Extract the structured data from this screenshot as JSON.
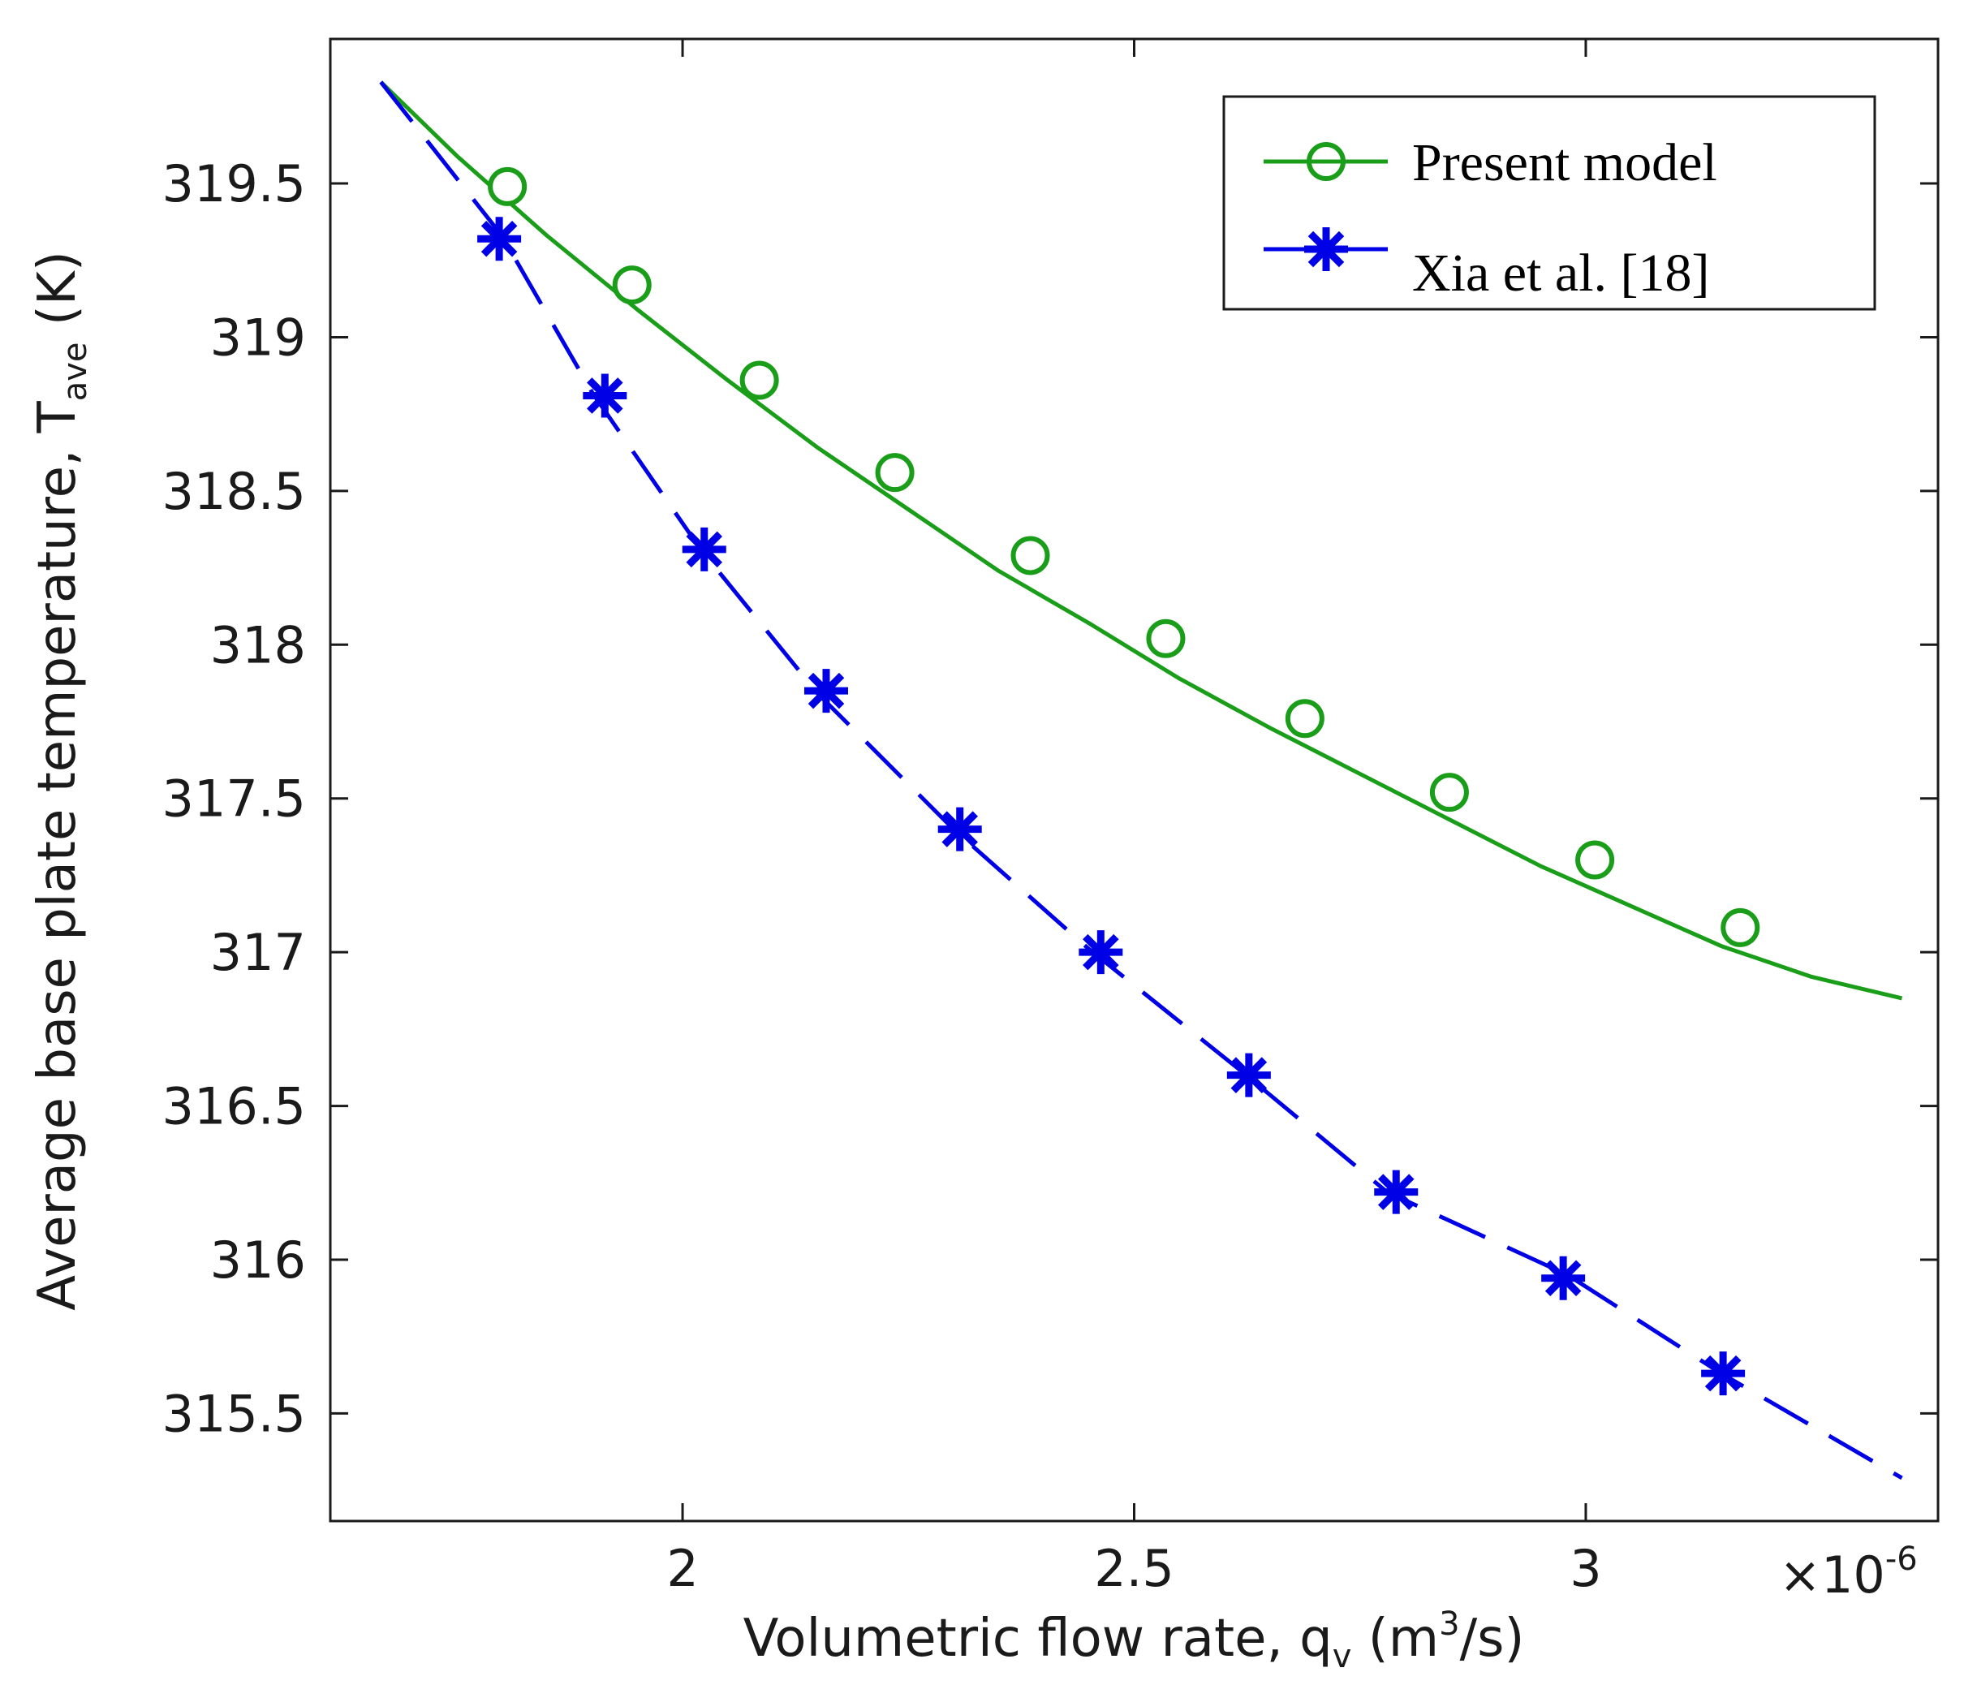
{
  "chart_data": {
    "type": "line",
    "title": "",
    "xlabel": {
      "prefix": "Volumetric flow rate, q",
      "sub": "v",
      "middle": " (m",
      "sup": "3",
      "suffix": "/s)"
    },
    "ylabel": {
      "prefix": "Average base plate temperature, T",
      "sub": "ave",
      "suffix": " (K)"
    },
    "x_multiplier_label": "×10",
    "x_multiplier_exp": "-6",
    "xlim": [
      1.61,
      3.39
    ],
    "ylim": [
      315.15,
      319.97
    ],
    "xticks": [
      2,
      2.5,
      3
    ],
    "xtick_labels": [
      "2",
      "2.5",
      "3"
    ],
    "yticks": [
      315.5,
      316,
      316.5,
      317,
      317.5,
      318,
      318.5,
      319,
      319.5
    ],
    "ytick_labels": [
      "315.5",
      "316",
      "316.5",
      "317",
      "317.5",
      "318",
      "318.5",
      "319",
      "319.5"
    ],
    "grid": false,
    "legend_position": "top-right",
    "series": [
      {
        "name": "Present model",
        "color": "#1a9e1a",
        "line_style": "solid",
        "marker": "circle",
        "line": {
          "x": [
            1.666,
            1.75,
            1.85,
            1.95,
            2.05,
            2.15,
            2.25,
            2.35,
            2.45,
            2.55,
            2.65,
            2.75,
            2.85,
            2.95,
            3.05,
            3.15,
            3.25,
            3.35
          ],
          "y": [
            319.83,
            319.59,
            319.33,
            319.09,
            318.86,
            318.64,
            318.44,
            318.24,
            318.07,
            317.89,
            317.73,
            317.58,
            317.43,
            317.28,
            317.15,
            317.02,
            316.92,
            316.85
          ]
        },
        "points": {
          "x": [
            1.806,
            1.944,
            2.085,
            2.235,
            2.385,
            2.535,
            2.689,
            2.849,
            3.01,
            3.171
          ],
          "y": [
            319.49,
            319.17,
            318.86,
            318.56,
            318.29,
            318.02,
            317.76,
            317.52,
            317.3,
            317.08
          ]
        }
      },
      {
        "name": "Xia et al. [18]",
        "color": "#0000e6",
        "line_style": "dashed",
        "marker": "asterisk",
        "line": {
          "x": [
            1.666,
            1.8,
            1.9,
            2.02,
            2.15,
            2.3,
            2.45,
            2.62,
            2.78,
            2.98,
            3.15,
            3.35
          ],
          "y": [
            319.83,
            319.33,
            318.82,
            318.31,
            317.84,
            317.4,
            317.01,
            316.61,
            316.22,
            315.95,
            315.63,
            315.29
          ]
        },
        "points": {
          "x": [
            1.797,
            1.914,
            2.024,
            2.159,
            2.307,
            2.463,
            2.627,
            2.79,
            2.975,
            3.152
          ],
          "y": [
            319.32,
            318.81,
            318.31,
            317.85,
            317.4,
            317.0,
            316.6,
            316.22,
            315.94,
            315.63
          ]
        }
      }
    ]
  }
}
